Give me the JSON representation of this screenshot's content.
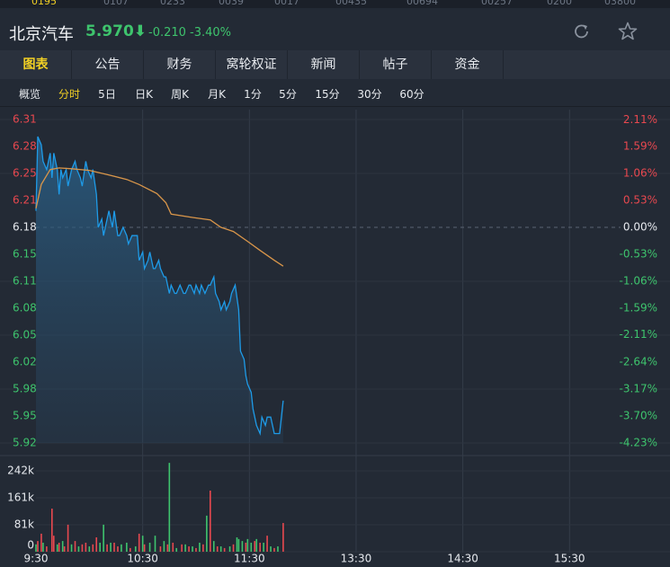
{
  "tickers": [
    "0195",
    "0107",
    "0233",
    "0039",
    "0017",
    "00435",
    "00694",
    "00257",
    "0200",
    "03800"
  ],
  "header": {
    "name": "北京汽车",
    "price": "5.970⬇",
    "change": "-0.210",
    "change_pct": "-3.40%"
  },
  "tabs": [
    "图表",
    "公告",
    "财务",
    "窝轮权证",
    "新闻",
    "帖子",
    "资金"
  ],
  "subtabs": [
    "概览",
    "分时",
    "5日",
    "日K",
    "周K",
    "月K",
    "1分",
    "5分",
    "15分",
    "30分",
    "60分"
  ],
  "chart_data": [
    {
      "type": "line",
      "xlim": [
        0,
        330
      ],
      "ylim": [
        5.9186,
        6.3107
      ],
      "yticks": [
        {
          "value": 6.3107,
          "label": "6.31"
        },
        {
          "value": 6.278,
          "label": "6.28"
        },
        {
          "value": 6.2454,
          "label": "6.25"
        },
        {
          "value": 6.2127,
          "label": "6.21"
        },
        {
          "value": 6.18,
          "label": "6.18"
        },
        {
          "value": 6.1473,
          "label": "6.15"
        },
        {
          "value": 6.1146,
          "label": "6.11"
        },
        {
          "value": 6.082,
          "label": "6.08"
        },
        {
          "value": 6.0493,
          "label": "6.05"
        },
        {
          "value": 6.0166,
          "label": "6.02"
        },
        {
          "value": 5.9839,
          "label": "5.98"
        },
        {
          "value": 5.9513,
          "label": "5.95"
        },
        {
          "value": 5.9186,
          "label": "5.92"
        }
      ],
      "y2lim": [
        -4.23,
        2.115
      ],
      "y2ticks": [
        {
          "value": 2.11,
          "label": "2.11%"
        },
        {
          "value": 1.59,
          "label": "1.59%"
        },
        {
          "value": 1.06,
          "label": "1.06%"
        },
        {
          "value": 0.53,
          "label": "0.53%"
        },
        {
          "value": 0,
          "label": "0.00%"
        },
        {
          "value": -0.53,
          "label": "-0.53%"
        },
        {
          "value": -1.06,
          "label": "-1.06%"
        },
        {
          "value": -1.59,
          "label": "-1.59%"
        },
        {
          "value": -2.11,
          "label": "-2.11%"
        },
        {
          "value": -2.64,
          "label": "-2.64%"
        },
        {
          "value": -3.17,
          "label": "-3.17%"
        },
        {
          "value": -3.7,
          "label": "-3.70%"
        },
        {
          "value": -4.23,
          "label": "-4.23%"
        }
      ],
      "ref_line": 6.18,
      "up_color": "#e8484f",
      "down_color": "#3ec46d",
      "series": [
        {
          "color": "#1e9be8",
          "area": true,
          "x": [
            0,
            1,
            3,
            4,
            6,
            8,
            9,
            10,
            12,
            13,
            14,
            15,
            17,
            18,
            20,
            22,
            23,
            25,
            26,
            28,
            29,
            31,
            32,
            34,
            35,
            37,
            38,
            40,
            41,
            43,
            44,
            46,
            47,
            49,
            51,
            52,
            54,
            55,
            57,
            58,
            60,
            61,
            63,
            64,
            66,
            67,
            69,
            70,
            72,
            73,
            75,
            76,
            78,
            79,
            81,
            83,
            84,
            86,
            87,
            89,
            90,
            92,
            93,
            95,
            97,
            98,
            100,
            101,
            103,
            104,
            106,
            107,
            109,
            110,
            112,
            114,
            115,
            117,
            118,
            119,
            121,
            122,
            124,
            126,
            127,
            129,
            130,
            132,
            133,
            134,
            136,
            137,
            139
          ],
          "values": [
            6.2,
            6.29,
            6.28,
            6.26,
            6.25,
            6.27,
            6.24,
            6.27,
            6.25,
            6.22,
            6.25,
            6.24,
            6.25,
            6.23,
            6.25,
            6.26,
            6.25,
            6.24,
            6.23,
            6.26,
            6.25,
            6.24,
            6.25,
            6.22,
            6.18,
            6.19,
            6.17,
            6.19,
            6.2,
            6.18,
            6.2,
            6.17,
            6.17,
            6.18,
            6.17,
            6.16,
            6.17,
            6.17,
            6.17,
            6.14,
            6.15,
            6.13,
            6.14,
            6.15,
            6.13,
            6.13,
            6.14,
            6.13,
            6.12,
            6.12,
            6.1,
            6.11,
            6.1,
            6.1,
            6.11,
            6.1,
            6.1,
            6.11,
            6.11,
            6.1,
            6.11,
            6.1,
            6.11,
            6.1,
            6.11,
            6.11,
            6.12,
            6.1,
            6.09,
            6.08,
            6.09,
            6.08,
            6.09,
            6.1,
            6.11,
            6.08,
            6.03,
            6.02,
            6.0,
            5.99,
            5.98,
            5.96,
            5.94,
            5.93,
            5.95,
            5.94,
            5.95,
            5.95,
            5.94,
            5.93,
            5.93,
            5.93,
            5.97
          ]
        },
        {
          "color": "#d9964a",
          "area": false,
          "x": [
            0,
            3,
            8,
            13,
            20,
            30,
            40,
            51,
            58,
            68,
            73,
            76,
            88,
            98,
            104,
            111,
            119,
            126,
            134,
            139
          ],
          "values": [
            6.203,
            6.232,
            6.25,
            6.252,
            6.251,
            6.249,
            6.244,
            6.238,
            6.232,
            6.221,
            6.21,
            6.196,
            6.192,
            6.189,
            6.18,
            6.175,
            6.163,
            6.152,
            6.14,
            6.133
          ]
        }
      ]
    },
    {
      "type": "bar",
      "xlim": [
        0,
        330
      ],
      "xticks": [
        {
          "value": 0,
          "label": "9:30"
        },
        {
          "value": 60,
          "label": "10:30"
        },
        {
          "value": 120,
          "label": "11:30"
        },
        {
          "value": 180,
          "label": "13:30"
        },
        {
          "value": 240,
          "label": "14:30"
        },
        {
          "value": 300,
          "label": "15:30"
        }
      ],
      "ylim": [
        0,
        269000
      ],
      "yticks": [
        {
          "value": 242000,
          "label": "242k"
        },
        {
          "value": 161333,
          "label": "161k"
        },
        {
          "value": 80667,
          "label": "81k"
        },
        0
      ],
      "x": [
        0,
        1,
        3,
        4,
        6,
        9,
        10,
        12,
        13,
        15,
        16,
        18,
        20,
        22,
        24,
        26,
        28,
        30,
        32,
        34,
        36,
        38,
        40,
        42,
        44,
        46,
        48,
        51,
        53,
        56,
        58,
        60,
        61,
        64,
        67,
        70,
        72,
        74,
        75,
        77,
        79,
        82,
        84,
        86,
        88,
        90,
        92,
        94,
        96,
        98,
        100,
        102,
        104,
        106,
        109,
        111,
        113,
        114,
        116,
        118,
        119,
        121,
        123,
        124,
        126,
        128,
        130,
        132,
        134,
        136,
        139
      ],
      "values": [
        22000,
        32000,
        54000,
        27000,
        16000,
        129000,
        48000,
        22000,
        27000,
        32000,
        16000,
        81000,
        22000,
        32000,
        16000,
        22000,
        27000,
        16000,
        22000,
        43000,
        27000,
        81000,
        22000,
        27000,
        27000,
        16000,
        22000,
        27000,
        11000,
        16000,
        54000,
        48000,
        22000,
        27000,
        48000,
        16000,
        32000,
        22000,
        266000,
        27000,
        11000,
        22000,
        22000,
        16000,
        16000,
        11000,
        27000,
        22000,
        108000,
        183000,
        32000,
        16000,
        16000,
        11000,
        16000,
        22000,
        43000,
        38000,
        32000,
        27000,
        38000,
        27000,
        32000,
        38000,
        27000,
        27000,
        48000,
        16000,
        11000,
        16000,
        86000
      ],
      "colors": [
        "#3ec46d",
        "#e8484f",
        "#e8484f",
        "#3ec46d",
        "#e8484f",
        "#e8484f",
        "#e8484f",
        "#3ec46d",
        "#e8484f",
        "#3ec46d",
        "#e8484f",
        "#e8484f",
        "#3ec46d",
        "#e8484f",
        "#3ec46d",
        "#e8484f",
        "#e8484f",
        "#3ec46d",
        "#e8484f",
        "#e8484f",
        "#3ec46d",
        "#3ec46d",
        "#e8484f",
        "#3ec46d",
        "#e8484f",
        "#e8484f",
        "#3ec46d",
        "#3ec46d",
        "#e8484f",
        "#3ec46d",
        "#e8484f",
        "#3ec46d",
        "#e8484f",
        "#3ec46d",
        "#3ec46d",
        "#e8484f",
        "#3ec46d",
        "#e8484f",
        "#3ec46d",
        "#e8484f",
        "#3ec46d",
        "#e8484f",
        "#3ec46d",
        "#e8484f",
        "#3ec46d",
        "#e8484f",
        "#3ec46d",
        "#e8484f",
        "#3ec46d",
        "#e8484f",
        "#3ec46d",
        "#e8484f",
        "#3ec46d",
        "#e8484f",
        "#3ec46d",
        "#e8484f",
        "#3ec46d",
        "#3ec46d",
        "#3ec46d",
        "#e8484f",
        "#3ec46d",
        "#3ec46d",
        "#e8484f",
        "#3ec46d",
        "#e8484f",
        "#3ec46d",
        "#e8484f",
        "#3ec46d",
        "#e8484f",
        "#3ec46d",
        "#e8484f"
      ]
    }
  ]
}
